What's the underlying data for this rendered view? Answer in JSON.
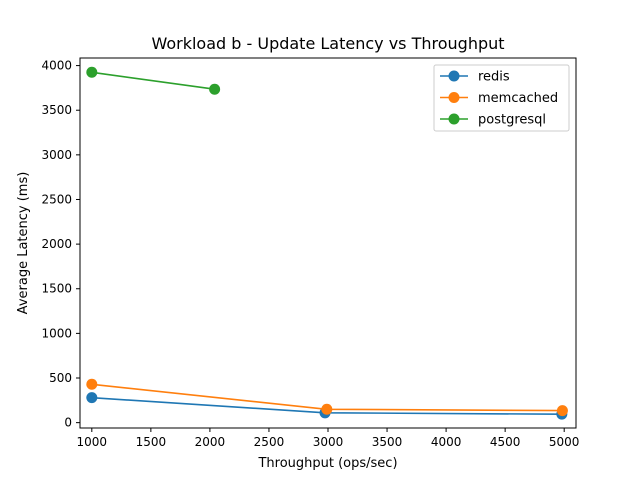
{
  "chart_data": {
    "type": "line",
    "title": "Workload b - Update Latency vs Throughput",
    "xlabel": "Throughput (ops/sec)",
    "ylabel": "Average Latency (ms)",
    "xlim": [
      900,
      5100
    ],
    "ylim": [
      -60,
      4085
    ],
    "xticks": [
      1000,
      1500,
      2000,
      2500,
      3000,
      3500,
      4000,
      4500,
      5000
    ],
    "yticks": [
      0,
      500,
      1000,
      1500,
      2000,
      2500,
      3000,
      3500,
      4000
    ],
    "grid": false,
    "legend_position": "top-right",
    "series": [
      {
        "name": "redis",
        "color": "#1f77b4",
        "x": [
          1000,
          2975,
          4980
        ],
        "y": [
          280,
          110,
          95
        ]
      },
      {
        "name": "memcached",
        "color": "#ff7f0e",
        "x": [
          1000,
          2990,
          4985
        ],
        "y": [
          430,
          150,
          135
        ]
      },
      {
        "name": "postgresql",
        "color": "#2ca02c",
        "x": [
          1000,
          2040
        ],
        "y": [
          3925,
          3735
        ]
      }
    ]
  }
}
